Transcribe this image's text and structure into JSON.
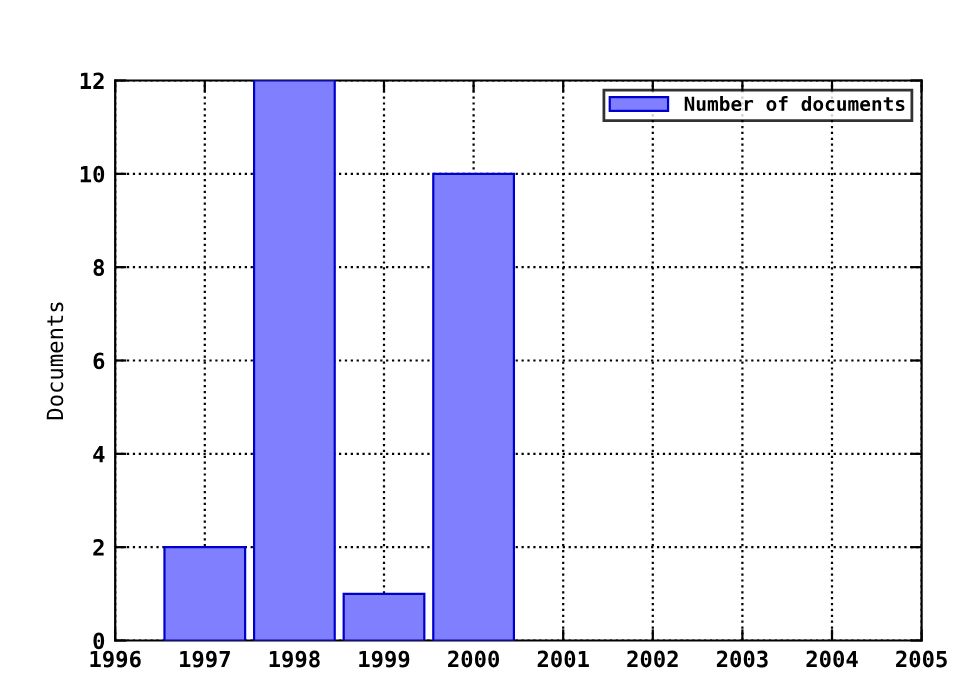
{
  "chart_data": {
    "type": "bar",
    "ylabel": "Documents",
    "x": [
      1997,
      1998,
      1999,
      2000
    ],
    "series": [
      {
        "name": "Number of documents",
        "color": "#8080ff",
        "values": [
          2,
          12,
          1,
          10
        ]
      }
    ],
    "xlim": [
      1996,
      2005
    ],
    "xticks": [
      1996,
      1997,
      1998,
      1999,
      2000,
      2001,
      2002,
      2003,
      2004,
      2005
    ],
    "ylim": [
      0,
      12
    ],
    "yticks": [
      0,
      2,
      4,
      6,
      8,
      10,
      12
    ],
    "grid": true,
    "legend": "top right"
  }
}
